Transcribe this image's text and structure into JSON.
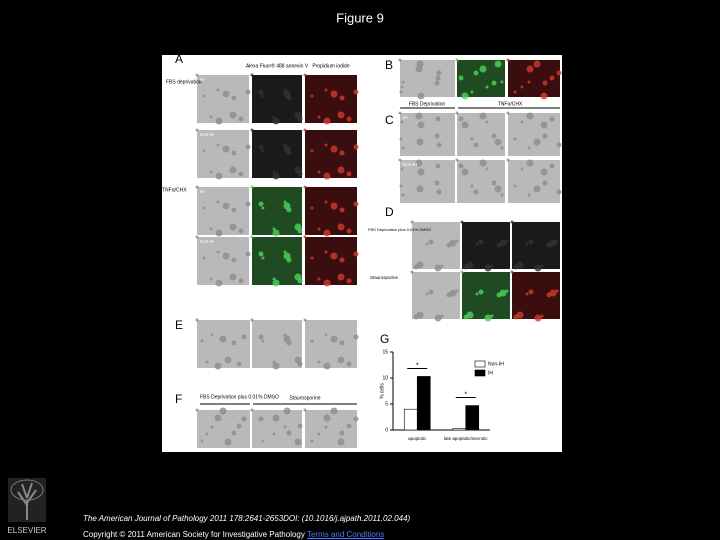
{
  "title": "Figure 9",
  "figure": {
    "panel_labels": [
      "A",
      "B",
      "C",
      "D",
      "E",
      "F",
      "G"
    ],
    "a_columns": [
      "Alexa Fluor® 488 annexin V",
      "Propidium iodide"
    ],
    "a_rows": [
      "FBS deprivation",
      "TNFα/CHX"
    ],
    "row_tags": [
      "IH",
      "Non-IH",
      "IH",
      "Non-IH"
    ],
    "c_columns": [
      "FBS Deprivation",
      "TNFα/CHX"
    ],
    "c_rows": [
      "IH",
      "Non-IH"
    ],
    "d_rows": [
      "FBS Deprivation plus 0.01% DMSO",
      "Staurosporine"
    ],
    "f_columns": [
      "FBS Deprivation plus 0.01% DMSO",
      "Staurosporine"
    ]
  },
  "chart_data": {
    "type": "bar",
    "ylabel": "% cells",
    "categories": [
      "apoptotic",
      "late apoptotic/necrotic"
    ],
    "series": [
      {
        "name": "Non-IH",
        "color": "#ffffff",
        "values": [
          4,
          0.3
        ]
      },
      {
        "name": "IH",
        "color": "#000000",
        "values": [
          10.3,
          4.7
        ]
      }
    ],
    "annotations": [
      "*",
      "*"
    ],
    "ylim": [
      0,
      15
    ],
    "yticks": [
      0,
      5,
      10,
      15
    ]
  },
  "footer": {
    "citation": "The American Journal of Pathology 2011 178:2641-2653DOI: (10.1016/j.ajpath.2011.02.044)",
    "copyright": "Copyright © 2011 American Society for Investigative Pathology",
    "link": "Terms and Conditions",
    "publisher": "ELSEVIER"
  }
}
